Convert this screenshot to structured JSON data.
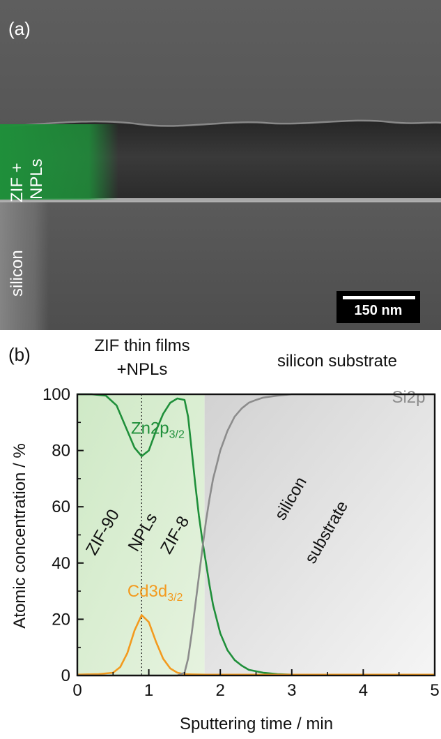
{
  "panel_a": {
    "label": "(a)",
    "layer_label_film": "ZIF +\nNPLs",
    "layer_label_substrate": "silicon",
    "scale_bar": "150 nm"
  },
  "panel_b": {
    "label": "(b)",
    "header_left_line1": "ZIF thin films",
    "header_left_line2": "+NPLs",
    "header_right": "silicon substrate"
  },
  "chart_data": {
    "type": "line",
    "xlabel": "Sputtering time / min",
    "ylabel": "Atomic concentration / %",
    "xlim": [
      0,
      5
    ],
    "ylim": [
      0,
      100
    ],
    "xticks": [
      0,
      1,
      2,
      3,
      4,
      5
    ],
    "yticks": [
      0,
      20,
      40,
      60,
      80,
      100
    ],
    "grid": false,
    "series": [
      {
        "name": "Zn2p3/2",
        "color": "#1f8f3a",
        "x": [
          0,
          0.2,
          0.4,
          0.55,
          0.7,
          0.8,
          0.9,
          1.0,
          1.1,
          1.2,
          1.3,
          1.4,
          1.5,
          1.55,
          1.6,
          1.65,
          1.7,
          1.75,
          1.8,
          1.85,
          1.9,
          2.0,
          2.1,
          2.2,
          2.3,
          2.4,
          2.6,
          2.8,
          3.0,
          4.0,
          5.0
        ],
        "y": [
          100,
          100,
          99.5,
          96,
          87,
          81,
          78,
          80,
          87,
          93,
          97,
          98.5,
          98,
          92,
          80,
          68,
          57,
          48,
          40,
          32,
          25,
          15,
          9,
          5.5,
          3.5,
          2,
          1,
          0.5,
          0.3,
          0.2,
          0.2
        ]
      },
      {
        "name": "Cd3d3/2",
        "color": "#f39a1e",
        "x": [
          0,
          0.3,
          0.5,
          0.6,
          0.7,
          0.8,
          0.9,
          1.0,
          1.1,
          1.2,
          1.3,
          1.4,
          1.5,
          1.6,
          1.8,
          2.0,
          3.0,
          5.0
        ],
        "y": [
          0.3,
          0.5,
          1,
          3,
          8,
          16,
          21.5,
          19,
          12,
          6,
          2.5,
          1,
          0.5,
          0.4,
          0.3,
          0.3,
          0.3,
          0.3
        ]
      },
      {
        "name": "Si2p",
        "color": "#8c8c8c",
        "x": [
          0,
          1.0,
          1.4,
          1.5,
          1.55,
          1.6,
          1.65,
          1.7,
          1.75,
          1.8,
          1.85,
          1.9,
          1.95,
          2.0,
          2.1,
          2.2,
          2.3,
          2.4,
          2.5,
          2.6,
          2.8,
          3.0,
          3.5,
          5.0
        ],
        "y": [
          0,
          0,
          0,
          1,
          6,
          15,
          25,
          35,
          45,
          55,
          63,
          70,
          75,
          80,
          87,
          92,
          95,
          97,
          98,
          98.8,
          99.5,
          100,
          100,
          100
        ]
      }
    ],
    "series_labels": [
      {
        "text": "Zn2p",
        "sub": "3/2",
        "x": 0.75,
        "y": 86,
        "color": "#1f8f3a"
      },
      {
        "text": "Cd3d",
        "sub": "3/2",
        "x": 0.7,
        "y": 28,
        "color": "#f39a1e"
      },
      {
        "text": "Si2p",
        "sub": "",
        "x": 4.4,
        "y": 97,
        "color": "#8c8c8c"
      }
    ],
    "annotations": [
      {
        "text": "ZIF-90",
        "x": 0.42,
        "y": 50,
        "angle": -60
      },
      {
        "text": "NPLs",
        "x": 0.98,
        "y": 50,
        "angle": -60
      },
      {
        "text": "ZIF-8",
        "x": 1.43,
        "y": 49,
        "angle": -60
      },
      {
        "text": "silicon",
        "x": 3.05,
        "y": 62,
        "angle": -60
      },
      {
        "text": "substrate",
        "x": 3.55,
        "y": 50,
        "angle": -60
      }
    ],
    "regions": [
      {
        "from": 0,
        "to": 1.78,
        "name": "ZIF thin films",
        "color": "#cfe9c6"
      },
      {
        "from": 1.78,
        "to": 5,
        "name": "silicon substrate",
        "color": "#d9d9d9"
      }
    ],
    "marker_line_x": 0.9
  }
}
